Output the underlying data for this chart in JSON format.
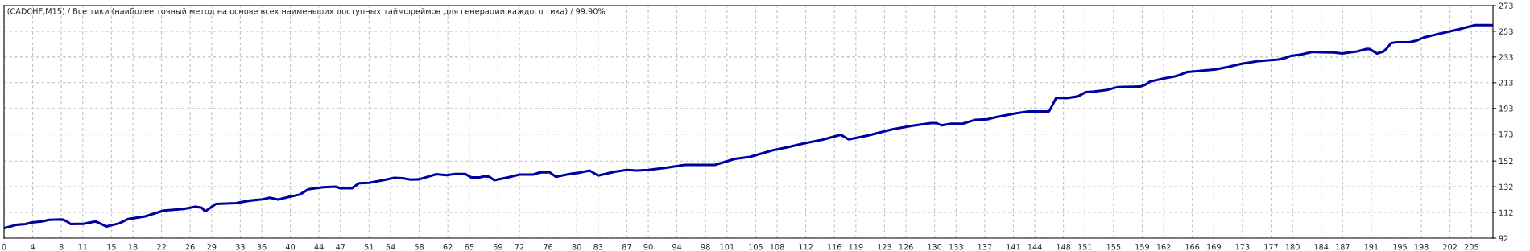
{
  "chart_data": {
    "type": "line",
    "title": "(CADCHF,M15) / Все тики (наиболее точный метод на основе всех наименьших доступных таймфреймов для генерации каждого тика) / 99.90%",
    "series": [
      {
        "color": "#0000a0",
        "x": [
          0,
          1.8,
          3.0,
          3.9,
          5.3,
          6.3,
          8.1,
          8.8,
          9.3,
          11.2,
          12.8,
          13.5,
          14.3,
          16.1,
          17.3,
          19.7,
          22.3,
          25.1,
          26.7,
          27.6,
          28.1,
          29.6,
          32.4,
          34.3,
          36.1,
          37.1,
          38.3,
          39.9,
          41.3,
          42.5,
          44.6,
          46.3,
          47,
          48.6,
          49.6,
          51,
          53.1,
          54.5,
          55.7,
          56.8,
          58,
          60.4,
          61.8,
          63,
          64.4,
          65.3,
          66.3,
          67.2,
          67.8,
          68.5,
          70.5,
          72,
          73.9,
          74.8,
          76.2,
          77.1,
          79,
          80.2,
          81.8,
          83,
          85.3,
          87,
          88.4,
          90,
          92.3,
          95.1,
          99.3,
          102.1,
          104.2,
          107.3,
          109.6,
          111.5,
          114.3,
          116.9,
          118,
          120.8,
          122.2,
          124.1,
          126.9,
          129.5,
          130.2,
          131,
          132.3,
          133.9,
          135.6,
          137.4,
          138.6,
          141.4,
          143.1,
          146,
          147,
          148.4,
          150,
          151.1,
          152.3,
          154.1,
          155.5,
          158.7,
          159.4,
          160.1,
          161.9,
          163.7,
          165.3,
          166.3,
          169.3,
          171.1,
          172.9,
          175.2,
          178,
          178.9,
          179.8,
          181.2,
          182.8,
          183.9,
          185.8,
          186.9,
          189,
          190.4,
          190.8,
          191.8,
          192.7,
          193.1,
          193.8,
          194.5,
          196.3,
          197.3,
          198.4,
          200.5,
          203.2,
          205.5,
          208
        ],
        "values": [
          99.8,
          102.4,
          103,
          104.2,
          105,
          106.3,
          106.6,
          105,
          103,
          103.2,
          105,
          103.2,
          101.1,
          103.5,
          106.8,
          108.9,
          113.4,
          114.7,
          116.5,
          115.7,
          112.8,
          118.6,
          119.3,
          121.2,
          122.2,
          123.5,
          122,
          124.3,
          125.9,
          130,
          131.6,
          132.1,
          130.8,
          130.8,
          134.7,
          135,
          137.3,
          138.9,
          138.6,
          137.6,
          137.8,
          141.8,
          141,
          142,
          142,
          139.2,
          139.2,
          140.2,
          139.7,
          137.1,
          139.4,
          141.5,
          141.5,
          143,
          143.3,
          139.7,
          142,
          142.8,
          144.6,
          140.7,
          143.6,
          145.1,
          144.6,
          145.1,
          146.7,
          149,
          149,
          153.7,
          155.3,
          160.3,
          162.9,
          165.5,
          168.6,
          172.5,
          168.9,
          172,
          174.1,
          176.7,
          179.5,
          181.6,
          181.6,
          179.8,
          181.1,
          181.1,
          184,
          184.5,
          186.3,
          189.2,
          190.7,
          190.7,
          201.3,
          201,
          202.3,
          205.6,
          206.2,
          207.4,
          209.5,
          210,
          211.3,
          213.9,
          216.2,
          218,
          221.3,
          221.8,
          223.4,
          225.4,
          227.7,
          229.8,
          231.1,
          232.1,
          233.9,
          234.9,
          237,
          236.7,
          236.5,
          235.7,
          237.3,
          239.3,
          239.1,
          235.7,
          237.3,
          239.3,
          243.9,
          244.5,
          244.5,
          245.7,
          248.3,
          251.1,
          254.5,
          257.8,
          257.8
        ]
      }
    ],
    "xlim": [
      0,
      208
    ],
    "xticks": [
      0,
      4,
      8,
      11,
      15,
      18,
      22,
      26,
      29,
      33,
      36,
      40,
      44,
      47,
      51,
      54,
      58,
      62,
      65,
      69,
      72,
      76,
      80,
      83,
      87,
      90,
      94,
      98,
      101,
      105,
      108,
      112,
      116,
      119,
      123,
      126,
      130,
      133,
      137,
      141,
      144,
      148,
      151,
      155,
      159,
      162,
      166,
      169,
      173,
      177,
      180,
      184,
      187,
      191,
      195,
      198,
      202,
      205
    ],
    "ylim": [
      92,
      273
    ],
    "yticks": [
      92,
      112,
      132,
      152,
      173,
      193,
      213,
      233,
      253,
      273
    ],
    "grid": true,
    "legend": false,
    "marker": "none",
    "line_style": "solid"
  }
}
